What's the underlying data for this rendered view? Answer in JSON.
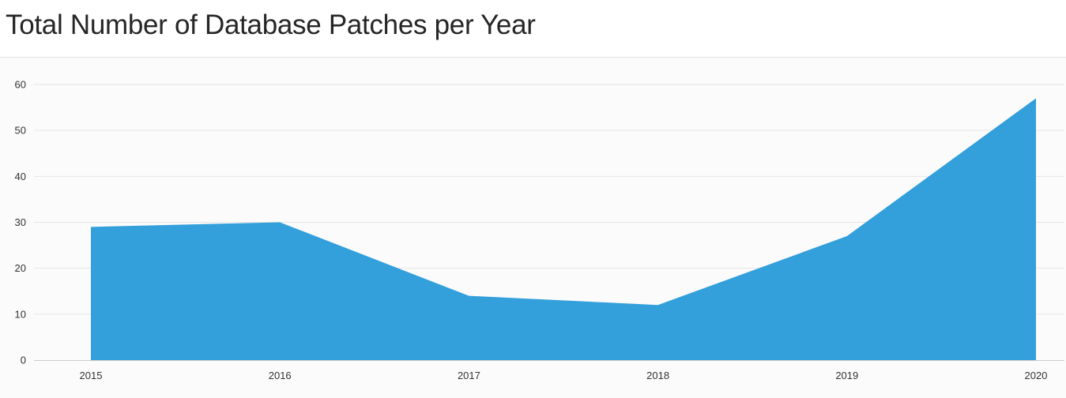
{
  "title": "Total Number of Database Patches per Year",
  "chart_data": {
    "type": "area",
    "title": "Total Number of Database Patches per Year",
    "categories": [
      "2015",
      "2016",
      "2017",
      "2018",
      "2019",
      "2020"
    ],
    "series": [
      {
        "values": [
          29,
          30,
          14,
          12,
          27,
          57
        ]
      }
    ],
    "ylim": [
      0,
      60
    ],
    "yticks": [
      0,
      10,
      20,
      30,
      40,
      50,
      60
    ],
    "grid": true,
    "legend": "none",
    "colors": {
      "fill": "#339fdb",
      "grid": "#e6e6e6",
      "axis": "#cccccc"
    }
  }
}
